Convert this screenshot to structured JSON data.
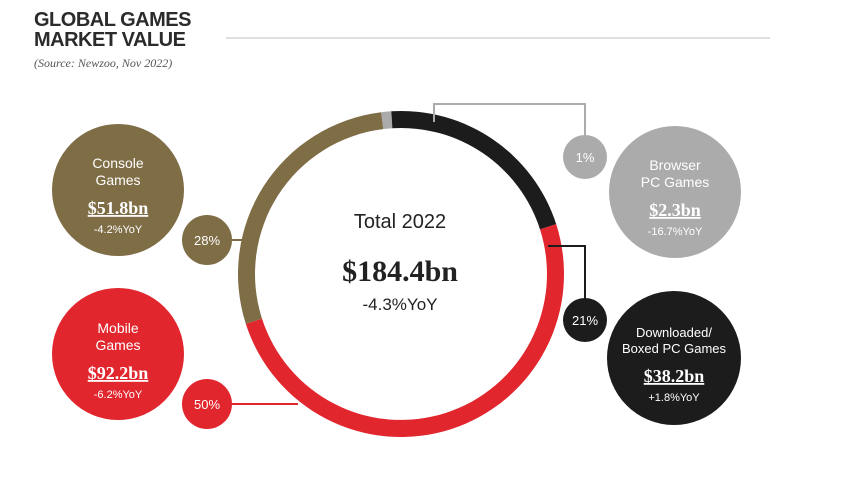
{
  "header": {
    "title_line1": "GLOBAL GAMES",
    "title_line2": "MARKET VALUE",
    "subtitle": "(Source: Newzoo, Nov 2022)"
  },
  "center": {
    "label": "Total 2022",
    "value": "$184.4bn",
    "change": "-4.3%YoY"
  },
  "colors": {
    "console": "#7f6d46",
    "mobile": "#e1262e",
    "downloaded": "#1c1c1c",
    "browser": "#ababab",
    "rule": "#bfbfbf"
  },
  "chart_data": {
    "type": "pie",
    "title": "GLOBAL GAMES MARKET VALUE",
    "total": 184.4,
    "total_label": "$184.4bn",
    "total_change": "-4.3%YoY",
    "unit": "$bn",
    "segments": [
      {
        "key": "browser",
        "name": "Browser PC Games",
        "name_lines": [
          "Browser",
          "PC Games"
        ],
        "value": 2.3,
        "value_label": "$2.3bn",
        "share": 1,
        "share_label": "1%",
        "change": "-16.7%YoY",
        "color": "#ababab"
      },
      {
        "key": "downloaded",
        "name": "Downloaded/ Boxed PC Games",
        "name_lines": [
          "Downloaded/",
          "Boxed PC Games"
        ],
        "value": 38.2,
        "value_label": "$38.2bn",
        "share": 21,
        "share_label": "21%",
        "change": "+1.8%YoY",
        "color": "#1c1c1c"
      },
      {
        "key": "mobile",
        "name": "Mobile Games",
        "name_lines": [
          "Mobile",
          "Games"
        ],
        "value": 92.2,
        "value_label": "$92.2bn",
        "share": 50,
        "share_label": "50%",
        "change": "-6.2%YoY",
        "color": "#e1262e"
      },
      {
        "key": "console",
        "name": "Console Games",
        "name_lines": [
          "Console",
          "Games"
        ],
        "value": 51.8,
        "value_label": "$51.8bn",
        "share": 28,
        "share_label": "28%",
        "change": "-4.2%YoY",
        "color": "#7f6d46"
      }
    ]
  }
}
